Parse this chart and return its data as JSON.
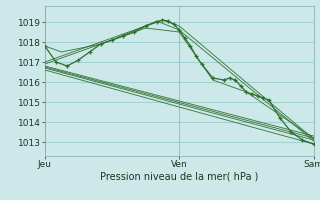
{
  "bg_color": "#cce8e8",
  "grid_color": "#99cccc",
  "line_color": "#2d6e2d",
  "title": "Pression niveau de la mer( hPa )",
  "ylabel_ticks": [
    1013,
    1014,
    1015,
    1016,
    1017,
    1018,
    1019
  ],
  "xlim": [
    0,
    48
  ],
  "ylim": [
    1012.3,
    1019.8
  ],
  "xtick_positions": [
    0,
    24,
    48
  ],
  "xtick_labels": [
    "Jeu",
    "Ven",
    "Sam"
  ],
  "main_line": {
    "x": [
      0,
      2,
      4,
      6,
      8,
      10,
      12,
      14,
      16,
      18,
      20,
      21,
      22,
      23,
      24,
      25,
      26,
      27,
      28,
      30,
      32,
      33,
      34,
      35,
      36,
      37,
      38,
      39,
      40,
      42,
      44,
      46,
      48
    ],
    "y": [
      1017.8,
      1017.0,
      1016.8,
      1017.1,
      1017.5,
      1017.9,
      1018.1,
      1018.3,
      1018.5,
      1018.8,
      1019.0,
      1019.1,
      1019.05,
      1018.9,
      1018.6,
      1018.2,
      1017.8,
      1017.3,
      1016.9,
      1016.2,
      1016.1,
      1016.2,
      1016.1,
      1015.8,
      1015.5,
      1015.4,
      1015.3,
      1015.2,
      1015.1,
      1014.2,
      1013.5,
      1013.1,
      1012.9
    ]
  },
  "ensemble_lines": [
    {
      "x": [
        0,
        48
      ],
      "y": [
        1016.8,
        1013.3
      ]
    },
    {
      "x": [
        0,
        48
      ],
      "y": [
        1016.7,
        1013.1
      ]
    },
    {
      "x": [
        0,
        48
      ],
      "y": [
        1016.6,
        1012.9
      ]
    },
    {
      "x": [
        0,
        48
      ],
      "y": [
        1016.75,
        1013.2
      ]
    },
    {
      "x": [
        0,
        3,
        12,
        21,
        24,
        48
      ],
      "y": [
        1017.0,
        1017.3,
        1018.2,
        1019.1,
        1018.8,
        1013.15
      ]
    },
    {
      "x": [
        0,
        3,
        12,
        20,
        24,
        48
      ],
      "y": [
        1016.9,
        1017.2,
        1018.1,
        1019.05,
        1018.6,
        1013.05
      ]
    },
    {
      "x": [
        0,
        3,
        10,
        18,
        24,
        30,
        36,
        48
      ],
      "y": [
        1017.8,
        1017.5,
        1017.9,
        1018.7,
        1018.5,
        1016.1,
        1015.5,
        1013.2
      ]
    }
  ]
}
